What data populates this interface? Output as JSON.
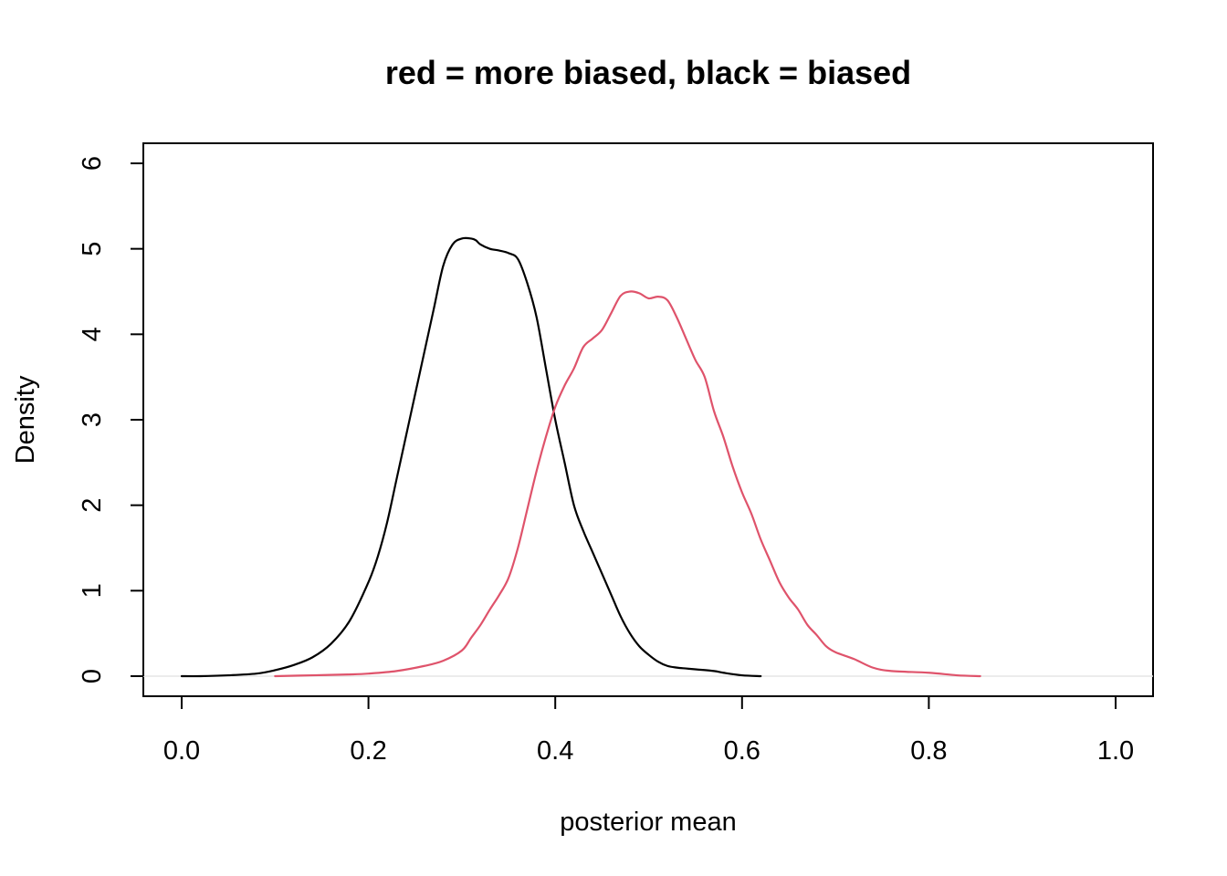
{
  "chart_data": {
    "type": "line",
    "title": "red = more biased, black = biased",
    "xlabel": "posterior mean",
    "ylabel": "Density",
    "xlim": [
      0,
      1
    ],
    "ylim": [
      0,
      6
    ],
    "x_ticks": [
      "0.0",
      "0.2",
      "0.4",
      "0.6",
      "0.8",
      "1.0"
    ],
    "y_ticks": [
      "0",
      "1",
      "2",
      "3",
      "4",
      "5",
      "6"
    ],
    "baseline_color": "#e6e6e6",
    "series": [
      {
        "color": "#000000",
        "x": [
          0.0,
          0.02,
          0.05,
          0.08,
          0.1,
          0.12,
          0.14,
          0.16,
          0.18,
          0.2,
          0.21,
          0.22,
          0.23,
          0.24,
          0.25,
          0.26,
          0.27,
          0.28,
          0.29,
          0.3,
          0.31,
          0.315,
          0.32,
          0.33,
          0.34,
          0.35,
          0.36,
          0.37,
          0.38,
          0.39,
          0.4,
          0.41,
          0.42,
          0.43,
          0.44,
          0.45,
          0.46,
          0.47,
          0.48,
          0.49,
          0.5,
          0.51,
          0.52,
          0.53,
          0.54,
          0.55,
          0.57,
          0.58,
          0.6,
          0.62
        ],
        "y": [
          0.0,
          0.0,
          0.01,
          0.03,
          0.07,
          0.13,
          0.22,
          0.38,
          0.65,
          1.1,
          1.4,
          1.8,
          2.3,
          2.8,
          3.3,
          3.8,
          4.3,
          4.8,
          5.05,
          5.12,
          5.12,
          5.1,
          5.05,
          5.0,
          4.98,
          4.95,
          4.88,
          4.6,
          4.2,
          3.6,
          3.0,
          2.5,
          2.0,
          1.7,
          1.45,
          1.2,
          0.95,
          0.7,
          0.5,
          0.35,
          0.25,
          0.17,
          0.12,
          0.1,
          0.09,
          0.08,
          0.06,
          0.04,
          0.01,
          0.0
        ]
      },
      {
        "color": "#df536b",
        "x": [
          0.1,
          0.14,
          0.18,
          0.2,
          0.23,
          0.26,
          0.28,
          0.3,
          0.31,
          0.32,
          0.33,
          0.34,
          0.35,
          0.36,
          0.37,
          0.38,
          0.39,
          0.4,
          0.41,
          0.42,
          0.43,
          0.44,
          0.45,
          0.46,
          0.47,
          0.48,
          0.49,
          0.5,
          0.51,
          0.52,
          0.53,
          0.54,
          0.55,
          0.56,
          0.57,
          0.58,
          0.59,
          0.6,
          0.61,
          0.62,
          0.63,
          0.64,
          0.65,
          0.66,
          0.67,
          0.68,
          0.69,
          0.7,
          0.72,
          0.74,
          0.76,
          0.8,
          0.83,
          0.855
        ],
        "y": [
          0.0,
          0.01,
          0.02,
          0.03,
          0.06,
          0.12,
          0.18,
          0.3,
          0.45,
          0.6,
          0.78,
          0.95,
          1.15,
          1.5,
          1.95,
          2.4,
          2.8,
          3.15,
          3.4,
          3.6,
          3.85,
          3.95,
          4.05,
          4.25,
          4.45,
          4.5,
          4.48,
          4.42,
          4.44,
          4.4,
          4.2,
          3.95,
          3.7,
          3.5,
          3.1,
          2.8,
          2.45,
          2.15,
          1.9,
          1.6,
          1.35,
          1.1,
          0.92,
          0.78,
          0.6,
          0.48,
          0.35,
          0.28,
          0.2,
          0.1,
          0.06,
          0.04,
          0.01,
          0.0
        ]
      }
    ]
  }
}
